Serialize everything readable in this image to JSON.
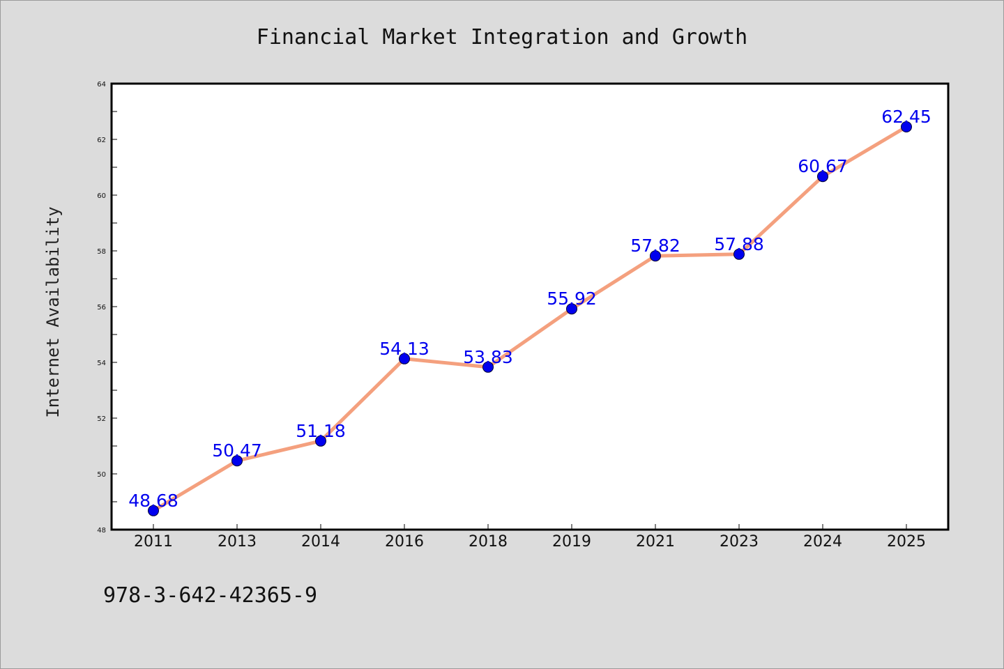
{
  "chart_data": {
    "type": "line",
    "title": "Financial Market Integration and Growth",
    "xlabel": "",
    "ylabel": "Internet Availability",
    "categories": [
      "2011",
      "2013",
      "2014",
      "2016",
      "2018",
      "2019",
      "2021",
      "2023",
      "2024",
      "2025"
    ],
    "series": [
      {
        "values": [
          48.68,
          50.47,
          51.18,
          54.13,
          53.83,
          55.92,
          57.82,
          57.88,
          60.67,
          62.45
        ],
        "line_color": "#f4a07e",
        "marker_color": "#0000ee"
      }
    ],
    "data_labels": [
      "48.68",
      "50.47",
      "51.18",
      "54.13",
      "53.83",
      "55.92",
      "57.82",
      "57.88",
      "60.67",
      "62.45"
    ],
    "ylim": [
      48,
      64
    ],
    "yticks": [
      48,
      50,
      52,
      54,
      56,
      58,
      60,
      62,
      64
    ],
    "grid": false,
    "legend": "none"
  },
  "footer": {
    "text": "978-3-642-42365-9"
  },
  "colors": {
    "background": "#dcdcdc",
    "plot_background": "#ffffff",
    "line": "#f4a07e",
    "marker": "#0000ee",
    "label": "#0000ee"
  }
}
